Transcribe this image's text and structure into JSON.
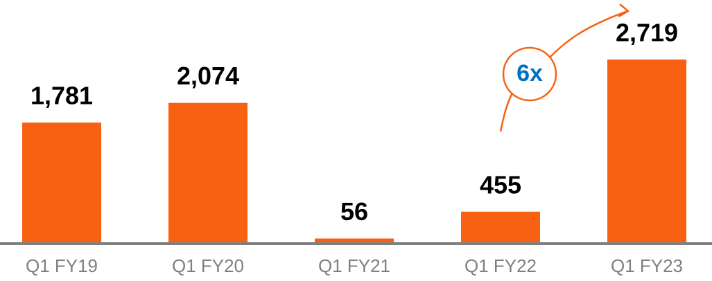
{
  "chart_data": {
    "type": "bar",
    "categories": [
      "Q1 FY19",
      "Q1 FY20",
      "Q1 FY21",
      "Q1 FY22",
      "Q1 FY23"
    ],
    "values": [
      1781,
      2074,
      56,
      455,
      2719
    ],
    "value_labels": [
      "1,781",
      "2,074",
      "56",
      "455",
      "2,719"
    ],
    "color": "#f96112",
    "annotation": "6x"
  }
}
